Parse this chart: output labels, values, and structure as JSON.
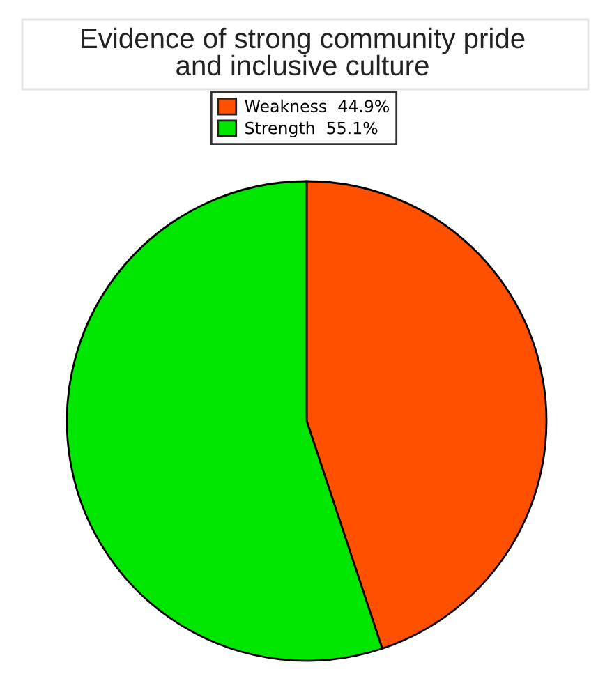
{
  "chart_data": {
    "type": "pie",
    "title": "Evidence of strong community pride\nand inclusive culture",
    "categories": [
      "Weakness",
      "Strength"
    ],
    "values": [
      44.9,
      55.1
    ],
    "value_labels": [
      "44.9%",
      "55.1%"
    ],
    "colors": [
      "#ff5000",
      "#00e600"
    ],
    "legend": "top"
  }
}
